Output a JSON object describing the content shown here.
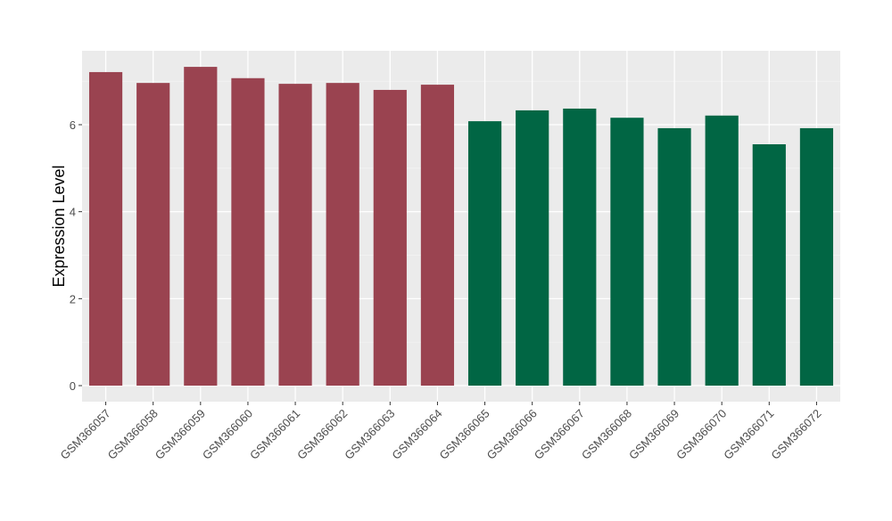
{
  "chart_data": {
    "type": "bar",
    "title": "",
    "xlabel": "",
    "ylabel": "Expression Level",
    "ylim": [
      -0.37,
      7.7
    ],
    "yticks": [
      0,
      2,
      4,
      6
    ],
    "grid": true,
    "categories": [
      "GSM366057",
      "GSM366058",
      "GSM366059",
      "GSM366060",
      "GSM366061",
      "GSM366062",
      "GSM366063",
      "GSM366064",
      "GSM366065",
      "GSM366066",
      "GSM366067",
      "GSM366068",
      "GSM366069",
      "GSM366070",
      "GSM366071",
      "GSM366072"
    ],
    "values": [
      7.21,
      6.96,
      7.33,
      7.07,
      6.94,
      6.96,
      6.8,
      6.92,
      6.08,
      6.33,
      6.37,
      6.16,
      5.92,
      6.21,
      5.55,
      5.92
    ],
    "groups": [
      0,
      0,
      0,
      0,
      0,
      0,
      0,
      0,
      1,
      1,
      1,
      1,
      1,
      1,
      1,
      1
    ],
    "group_colors": [
      "#9a4350",
      "#016644"
    ]
  }
}
